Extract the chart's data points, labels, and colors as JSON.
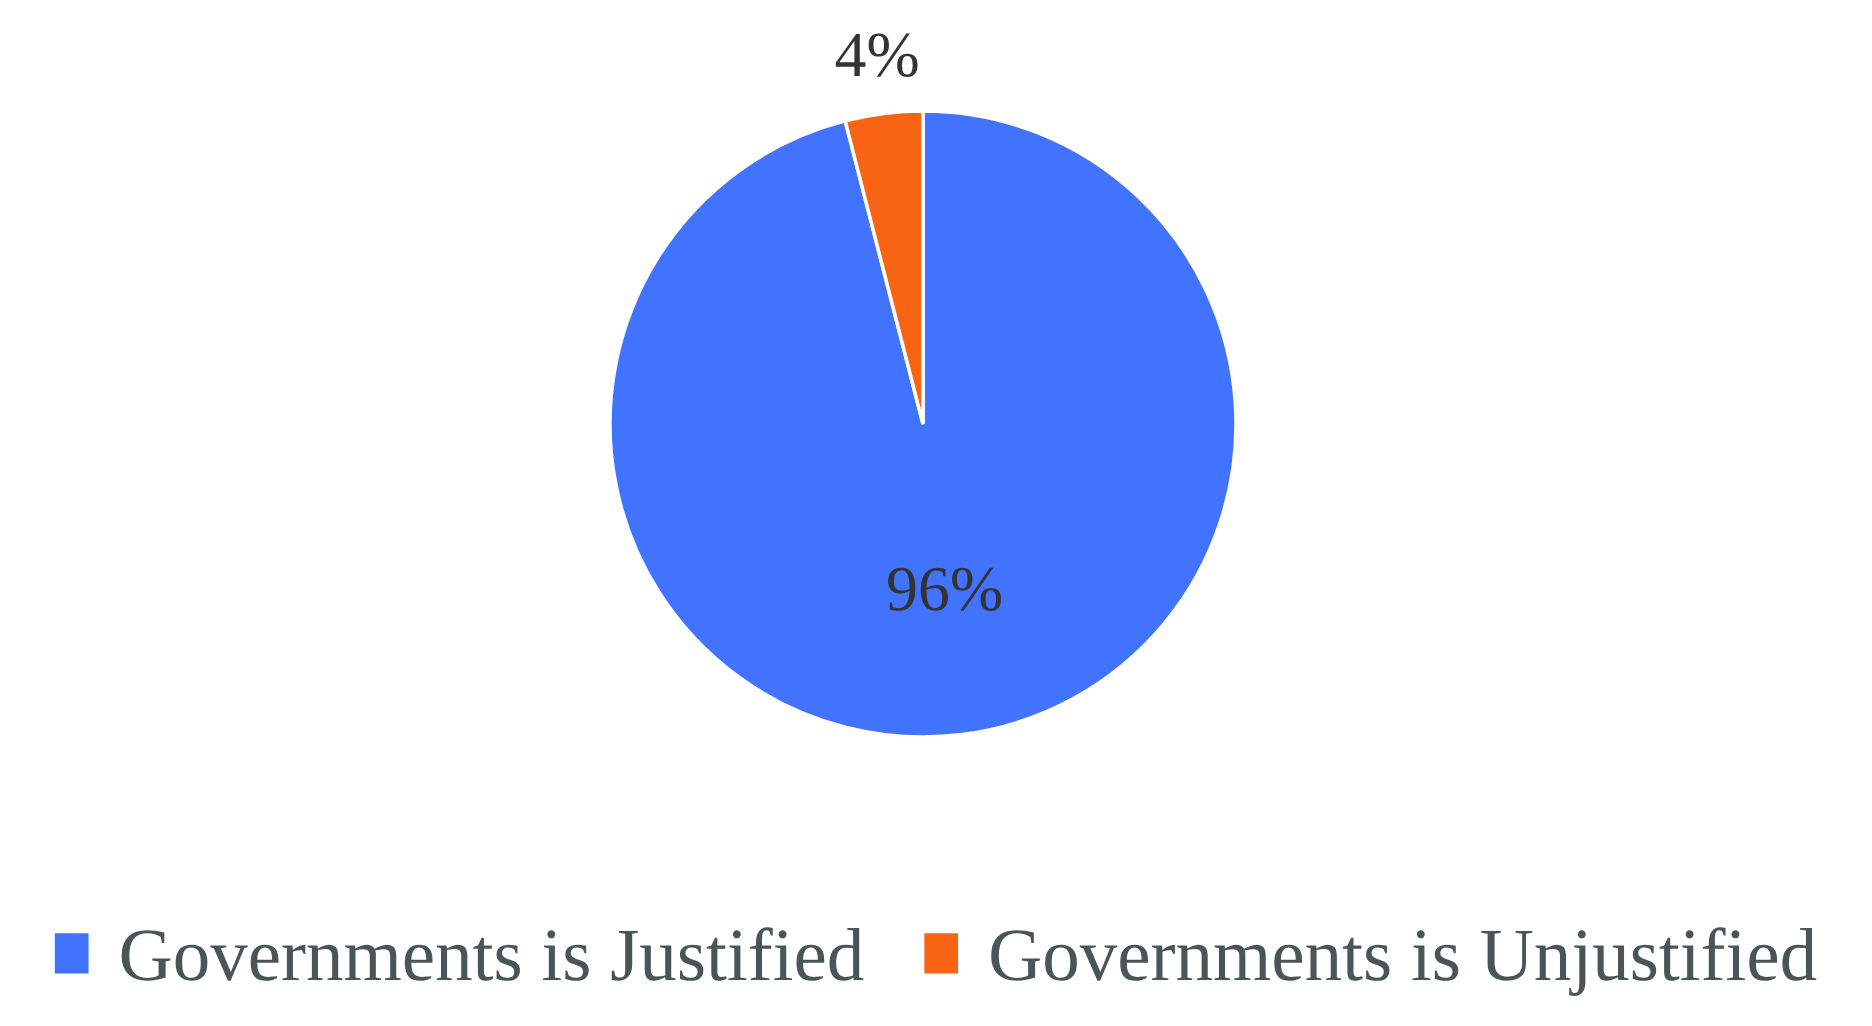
{
  "chart_data": {
    "type": "pie",
    "categories": [
      "Governments is Justified",
      "Governments is Unjustified"
    ],
    "values": [
      96,
      4
    ],
    "colors": [
      "#4273ff",
      "#f96314"
    ],
    "value_labels": [
      "96%",
      "4%"
    ],
    "legend": "bottom"
  }
}
